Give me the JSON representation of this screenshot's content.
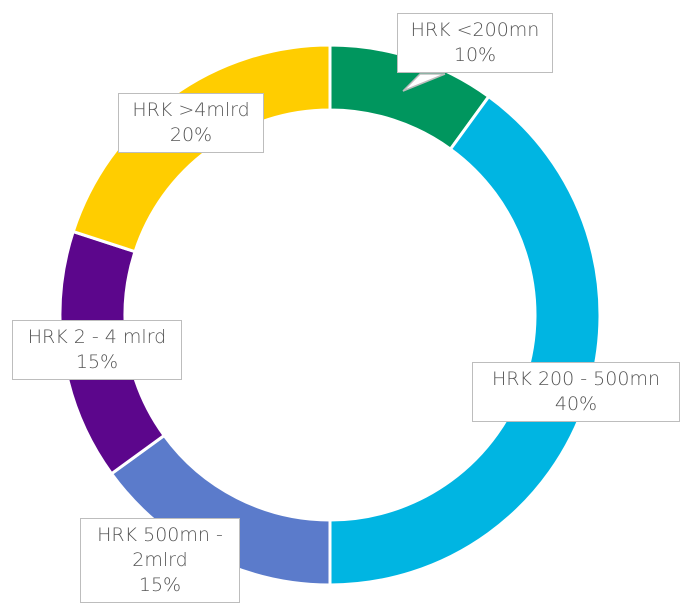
{
  "chart_data": {
    "type": "donut",
    "categories": [
      "HRK <200mn",
      "HRK 200 - 500mn",
      "HRK 500mn - 2mlrd",
      "HRK 2 - 4 mlrd",
      "HRK >4mlrd"
    ],
    "values": [
      10,
      40,
      15,
      15,
      20
    ],
    "value_labels": [
      "10%",
      "40%",
      "15%",
      "15%",
      "20%"
    ],
    "colors": [
      "#00965e",
      "#00b5e2",
      "#5b7bcb",
      "#5c068c",
      "#ffcd00"
    ]
  }
}
